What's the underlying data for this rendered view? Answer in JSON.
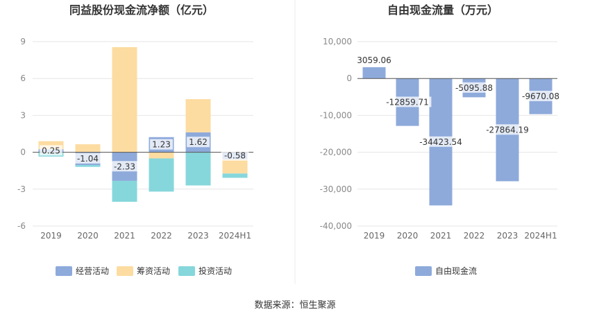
{
  "source_note": "数据来源：恒生聚源",
  "chart_data": [
    {
      "type": "bar",
      "stacked": true,
      "title": "同益股份现金流净额（亿元）",
      "categories": [
        "2019",
        "2020",
        "2021",
        "2022",
        "2023",
        "2024H1"
      ],
      "ylim": [
        -6,
        9
      ],
      "yticks": [
        "9",
        "6",
        "3",
        "0",
        "-3",
        "-6"
      ],
      "grid": true,
      "legend_position": "bottom",
      "series": [
        {
          "name": "经营活动",
          "color": "#8eaadb",
          "values": [
            0.25,
            -1.04,
            -2.33,
            1.23,
            1.62,
            -0.58
          ],
          "labels": [
            "0.25",
            "-1.04",
            "-2.33",
            "1.23",
            "1.62",
            "-0.58"
          ]
        },
        {
          "name": "筹资活动",
          "color": "#fddca1",
          "values": [
            0.65,
            0.65,
            8.55,
            -0.5,
            2.7,
            -1.15
          ]
        },
        {
          "name": "投资活动",
          "color": "#86d7db",
          "values": [
            -0.35,
            -0.15,
            -1.7,
            -2.7,
            -2.7,
            -0.35
          ]
        }
      ]
    },
    {
      "type": "bar",
      "title": "自由现金流量（万元）",
      "categories": [
        "2019",
        "2020",
        "2021",
        "2022",
        "2023",
        "2024H1"
      ],
      "ylim": [
        -40000,
        10000
      ],
      "yticks": [
        "10,000",
        "0",
        "-10,000",
        "-20,000",
        "-30,000",
        "-40,000"
      ],
      "grid": true,
      "legend_position": "bottom",
      "series": [
        {
          "name": "自由现金流",
          "color": "#8eaadb",
          "values": [
            3059.06,
            -12859.71,
            -34423.54,
            -5095.88,
            -27864.19,
            -9670.08
          ],
          "labels": [
            "3059.06",
            "-12859.71",
            "-34423.54",
            "-5095.88",
            "-27864.19",
            "-9670.08"
          ]
        }
      ]
    }
  ]
}
